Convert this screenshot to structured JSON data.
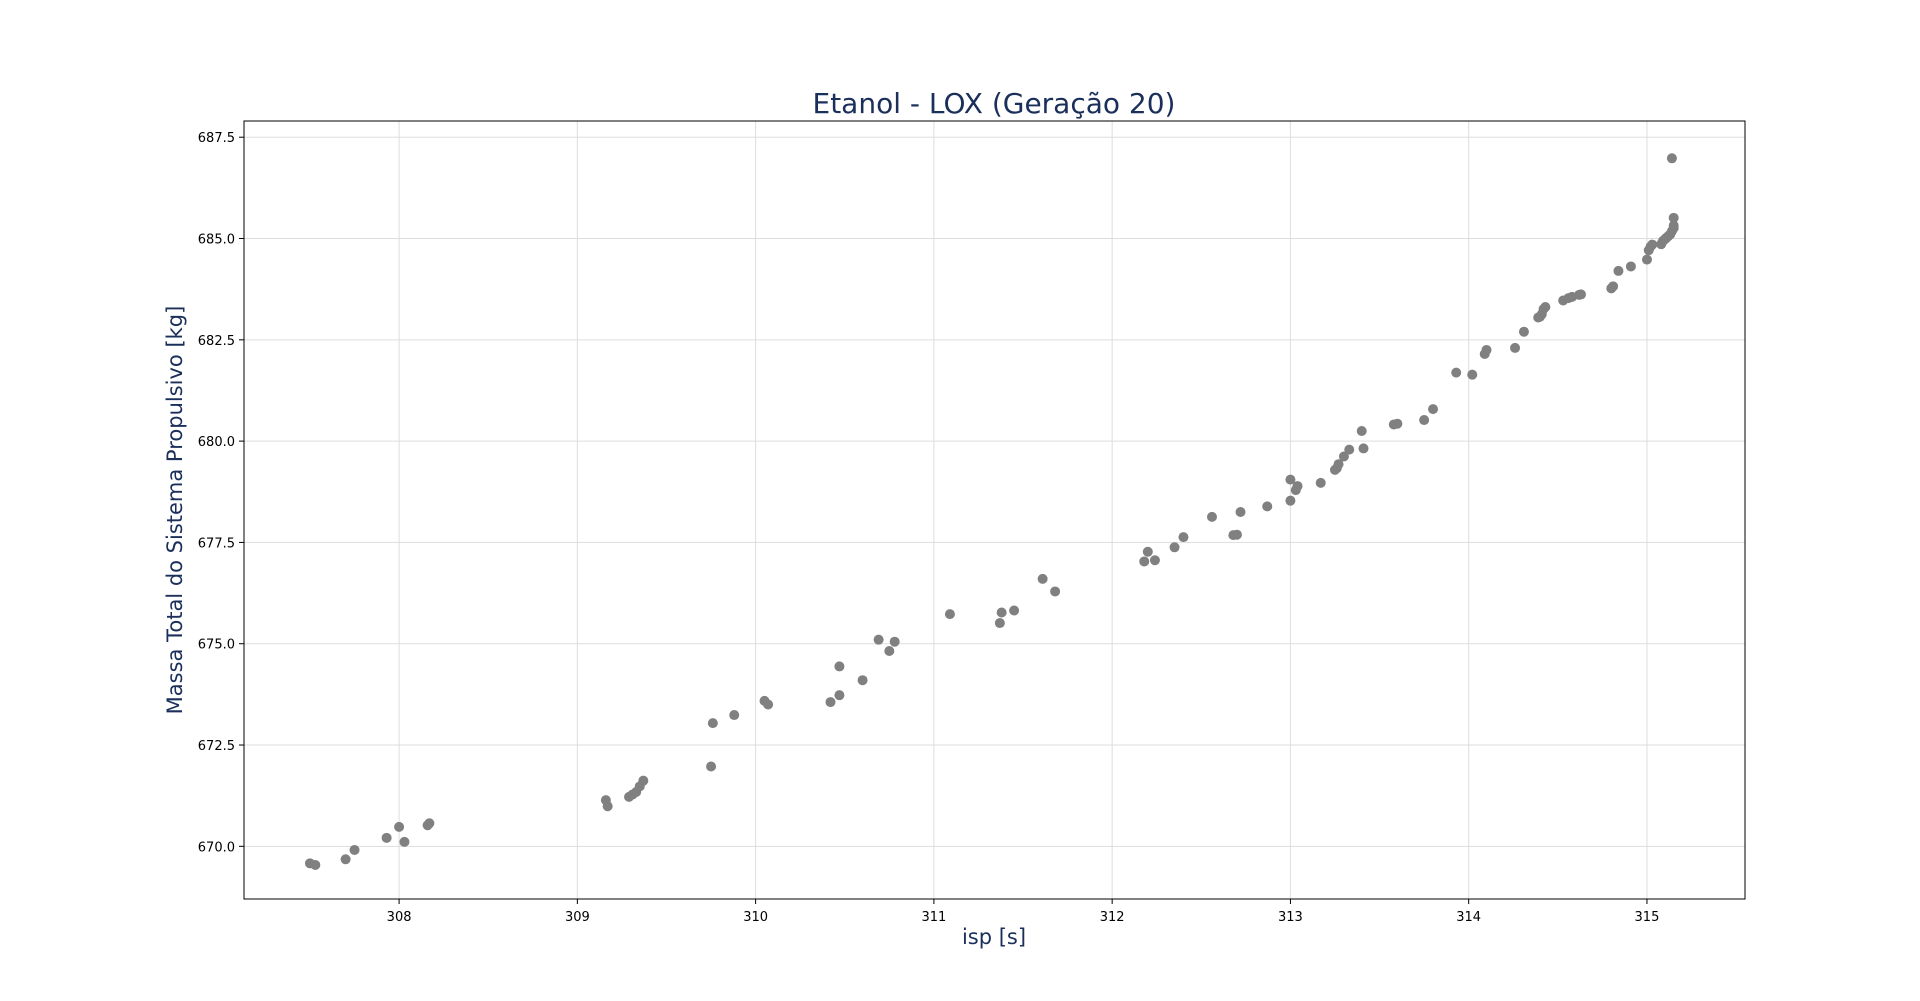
{
  "chart_data": {
    "type": "scatter",
    "title": "Etanol - LOX (Geração 20)",
    "xlabel": "isp [s]",
    "ylabel": "Massa Total do Sistema Propulsivo [kg]",
    "xlim": [
      307.13,
      315.55
    ],
    "ylim": [
      668.7,
      687.9
    ],
    "xticks": [
      308,
      309,
      310,
      311,
      312,
      313,
      314,
      315
    ],
    "yticks": [
      670.0,
      672.5,
      675.0,
      677.5,
      680.0,
      682.5,
      685.0,
      687.5
    ],
    "xtick_labels": [
      "308",
      "309",
      "310",
      "311",
      "312",
      "313",
      "314",
      "315"
    ],
    "ytick_labels": [
      "670.0",
      "672.5",
      "675.0",
      "677.5",
      "680.0",
      "682.5",
      "685.0",
      "687.5"
    ],
    "grid": true,
    "marker_color": "#808080",
    "series": [
      {
        "points": [
          [
            307.5,
            669.58
          ],
          [
            307.53,
            669.54
          ],
          [
            307.7,
            669.68
          ],
          [
            307.75,
            669.91
          ],
          [
            307.93,
            670.21
          ],
          [
            308.0,
            670.48
          ],
          [
            308.03,
            670.11
          ],
          [
            308.16,
            670.52
          ],
          [
            308.17,
            670.57
          ],
          [
            309.16,
            671.14
          ],
          [
            309.17,
            670.99
          ],
          [
            309.29,
            671.22
          ],
          [
            309.31,
            671.28
          ],
          [
            309.33,
            671.34
          ],
          [
            309.35,
            671.48
          ],
          [
            309.37,
            671.62
          ],
          [
            309.75,
            671.97
          ],
          [
            309.76,
            673.04
          ],
          [
            309.88,
            673.24
          ],
          [
            310.05,
            673.59
          ],
          [
            310.07,
            673.5
          ],
          [
            310.42,
            673.56
          ],
          [
            310.47,
            674.44
          ],
          [
            310.47,
            673.73
          ],
          [
            310.6,
            674.1
          ],
          [
            310.69,
            675.1
          ],
          [
            310.75,
            674.82
          ],
          [
            310.78,
            675.05
          ],
          [
            311.09,
            675.73
          ],
          [
            311.37,
            675.51
          ],
          [
            311.38,
            675.77
          ],
          [
            311.45,
            675.82
          ],
          [
            311.61,
            676.6
          ],
          [
            311.68,
            676.29
          ],
          [
            312.18,
            677.03
          ],
          [
            312.2,
            677.27
          ],
          [
            312.24,
            677.06
          ],
          [
            312.35,
            677.38
          ],
          [
            312.4,
            677.63
          ],
          [
            312.56,
            678.13
          ],
          [
            312.68,
            677.68
          ],
          [
            312.7,
            677.69
          ],
          [
            312.72,
            678.25
          ],
          [
            312.87,
            678.39
          ],
          [
            313.0,
            679.05
          ],
          [
            313.0,
            678.53
          ],
          [
            313.03,
            678.79
          ],
          [
            313.04,
            678.89
          ],
          [
            313.17,
            678.97
          ],
          [
            313.25,
            679.29
          ],
          [
            313.26,
            679.33
          ],
          [
            313.27,
            679.43
          ],
          [
            313.3,
            679.62
          ],
          [
            313.33,
            679.79
          ],
          [
            313.4,
            680.25
          ],
          [
            313.41,
            679.82
          ],
          [
            313.58,
            680.41
          ],
          [
            313.6,
            680.43
          ],
          [
            313.75,
            680.52
          ],
          [
            313.8,
            680.79
          ],
          [
            313.93,
            681.69
          ],
          [
            314.02,
            681.64
          ],
          [
            314.09,
            682.15
          ],
          [
            314.1,
            682.25
          ],
          [
            314.26,
            682.3
          ],
          [
            314.31,
            682.7
          ],
          [
            314.39,
            683.05
          ],
          [
            314.4,
            683.07
          ],
          [
            314.41,
            683.13
          ],
          [
            314.42,
            683.26
          ],
          [
            314.43,
            683.31
          ],
          [
            314.53,
            683.47
          ],
          [
            314.56,
            683.53
          ],
          [
            314.58,
            683.56
          ],
          [
            314.62,
            683.61
          ],
          [
            314.63,
            683.62
          ],
          [
            314.8,
            683.77
          ],
          [
            314.81,
            683.82
          ],
          [
            314.84,
            684.2
          ],
          [
            314.91,
            684.31
          ],
          [
            315.0,
            684.48
          ],
          [
            315.01,
            684.71
          ],
          [
            315.02,
            684.8
          ],
          [
            315.03,
            684.85
          ],
          [
            315.08,
            684.86
          ],
          [
            315.09,
            684.94
          ],
          [
            315.1,
            684.98
          ],
          [
            315.11,
            685.02
          ],
          [
            315.12,
            685.06
          ],
          [
            315.13,
            685.1
          ],
          [
            315.14,
            685.18
          ],
          [
            315.15,
            685.26
          ],
          [
            315.15,
            685.32
          ],
          [
            315.15,
            685.51
          ],
          [
            315.14,
            686.98
          ]
        ]
      }
    ]
  }
}
